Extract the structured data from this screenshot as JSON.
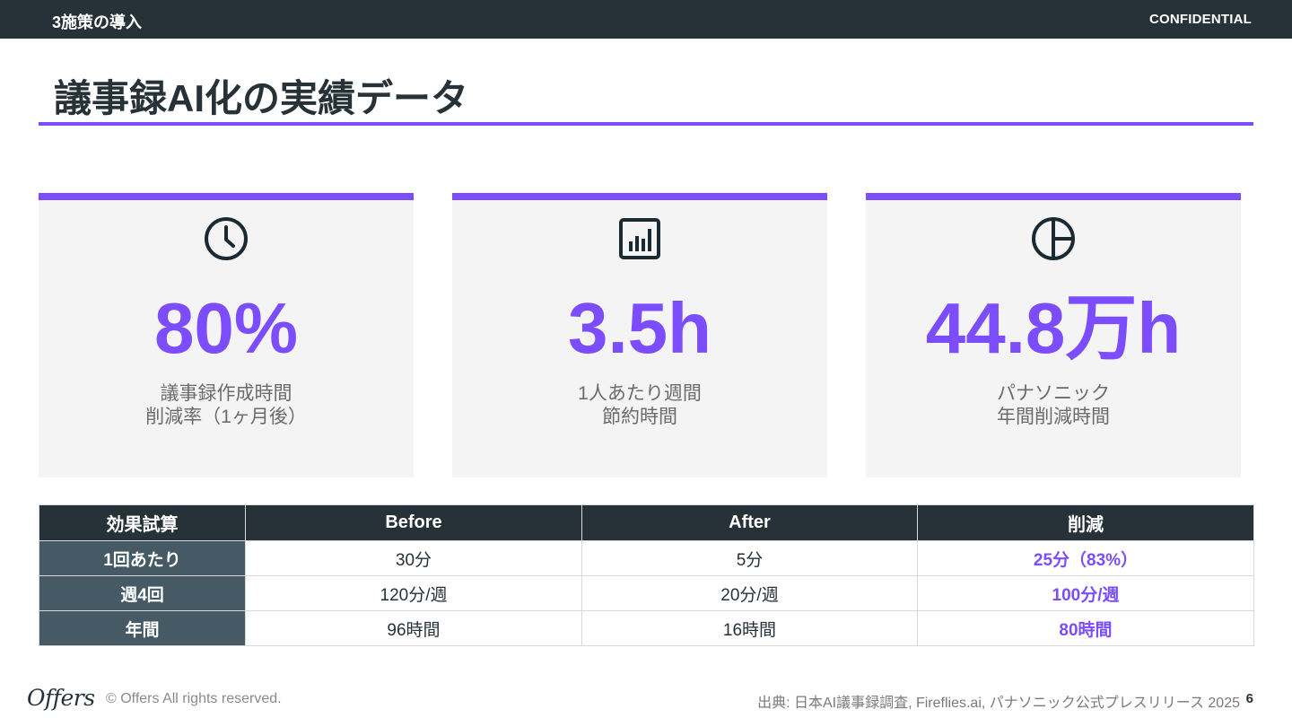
{
  "header": {
    "section": "3施策の導入",
    "confidential": "CONFIDENTIAL"
  },
  "title": "議事録AI化の実績データ",
  "colors": {
    "accent": "#7c4dff",
    "dark": "#263238",
    "row_header": "#455a64",
    "card_bg": "#f4f4f4"
  },
  "cards": [
    {
      "icon": "clock-icon",
      "value": "80%",
      "label": [
        "議事録作成時間",
        "削減率（1ヶ月後）"
      ]
    },
    {
      "icon": "bar-chart-icon",
      "value": "3.5h",
      "label": [
        "1人あたり週間",
        "節約時間"
      ]
    },
    {
      "icon": "pie-chart-icon",
      "value": "44.8万h",
      "label": [
        "パナソニック",
        "年間削減時間"
      ]
    }
  ],
  "table": {
    "headers": [
      "効果試算",
      "Before",
      "After",
      "削減"
    ],
    "rows": [
      [
        "1回あたり",
        "30分",
        "5分",
        "25分（83%）"
      ],
      [
        "週4回",
        "120分/週",
        "20分/週",
        "100分/週"
      ],
      [
        "年間",
        "96時間",
        "16時間",
        "80時間"
      ]
    ]
  },
  "footer": {
    "logo": "Offers",
    "copyright": "© Offers All rights reserved.",
    "source": "出典: 日本AI議事録調査, Fireflies.ai, パナソニック公式プレスリリース 2025",
    "page": "6"
  }
}
